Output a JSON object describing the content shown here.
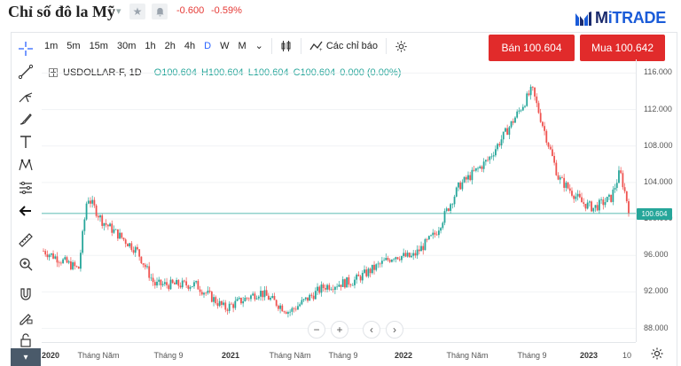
{
  "header": {
    "title": "Chỉ số đô la Mỹ",
    "change_abs": "-0.600",
    "change_pct": "-0.59%",
    "logo_brand_a": "M",
    "logo_brand_b": "iTRADE"
  },
  "toolbar": {
    "timeframes": [
      "1m",
      "5m",
      "15m",
      "30m",
      "1h",
      "2h",
      "4h",
      "D",
      "W",
      "M"
    ],
    "active_timeframe": "D",
    "indicators_label": "Các chỉ báo"
  },
  "trade": {
    "sell_label": "Bán 100.604",
    "buy_label": "Mua 100.642"
  },
  "legend": {
    "symbol": "USDOLLAR-F, 1D",
    "o": "O100.604",
    "h": "H100.604",
    "l": "L100.604",
    "c": "C100.604",
    "chg": "0.000 (0.00%)"
  },
  "price_tag": "100.604",
  "y_labels": [
    "116.000",
    "112.000",
    "108.000",
    "104.000",
    "100.000",
    "96.000",
    "92.000",
    "88.000"
  ],
  "x_labels": [
    {
      "t": "2020",
      "bold": true
    },
    {
      "t": "Tháng Năm",
      "bold": false
    },
    {
      "t": "Tháng 9",
      "bold": false
    },
    {
      "t": "2021",
      "bold": true
    },
    {
      "t": "Tháng Năm",
      "bold": false
    },
    {
      "t": "Tháng 9",
      "bold": false
    },
    {
      "t": "2022",
      "bold": true
    },
    {
      "t": "Tháng Năm",
      "bold": false
    },
    {
      "t": "Tháng 9",
      "bold": false
    },
    {
      "t": "2023",
      "bold": true
    },
    {
      "t": "10",
      "bold": false
    }
  ],
  "colors": {
    "up": "#26a69a",
    "down": "#ef5350",
    "sell": "#e12b2b",
    "buy": "#e12b2b",
    "accent": "#2962ff"
  },
  "chart_data": {
    "type": "line",
    "title": "",
    "xlabel": "",
    "ylabel": "",
    "ylim": [
      86.5,
      117.5
    ],
    "x": [
      "2020-01",
      "2020-03",
      "2020-03b",
      "2020-05",
      "2020-07",
      "2020-09",
      "2020-11",
      "2021-01",
      "2021-03",
      "2021-05",
      "2021-07",
      "2021-09",
      "2021-11",
      "2022-01",
      "2022-03",
      "2022-05",
      "2022-07",
      "2022-09",
      "2022-10",
      "2022-12",
      "2023-02",
      "2023-04",
      "2023-06",
      "2023-08",
      "2023-10"
    ],
    "values": [
      96.5,
      94.5,
      102.5,
      99.8,
      96.5,
      92.8,
      92.8,
      90.2,
      92.0,
      89.8,
      92.6,
      93.2,
      96.0,
      95.8,
      98.4,
      103.6,
      106.5,
      110.5,
      114.2,
      104.5,
      101.8,
      101.2,
      102.3,
      105.2,
      101.2
    ]
  }
}
